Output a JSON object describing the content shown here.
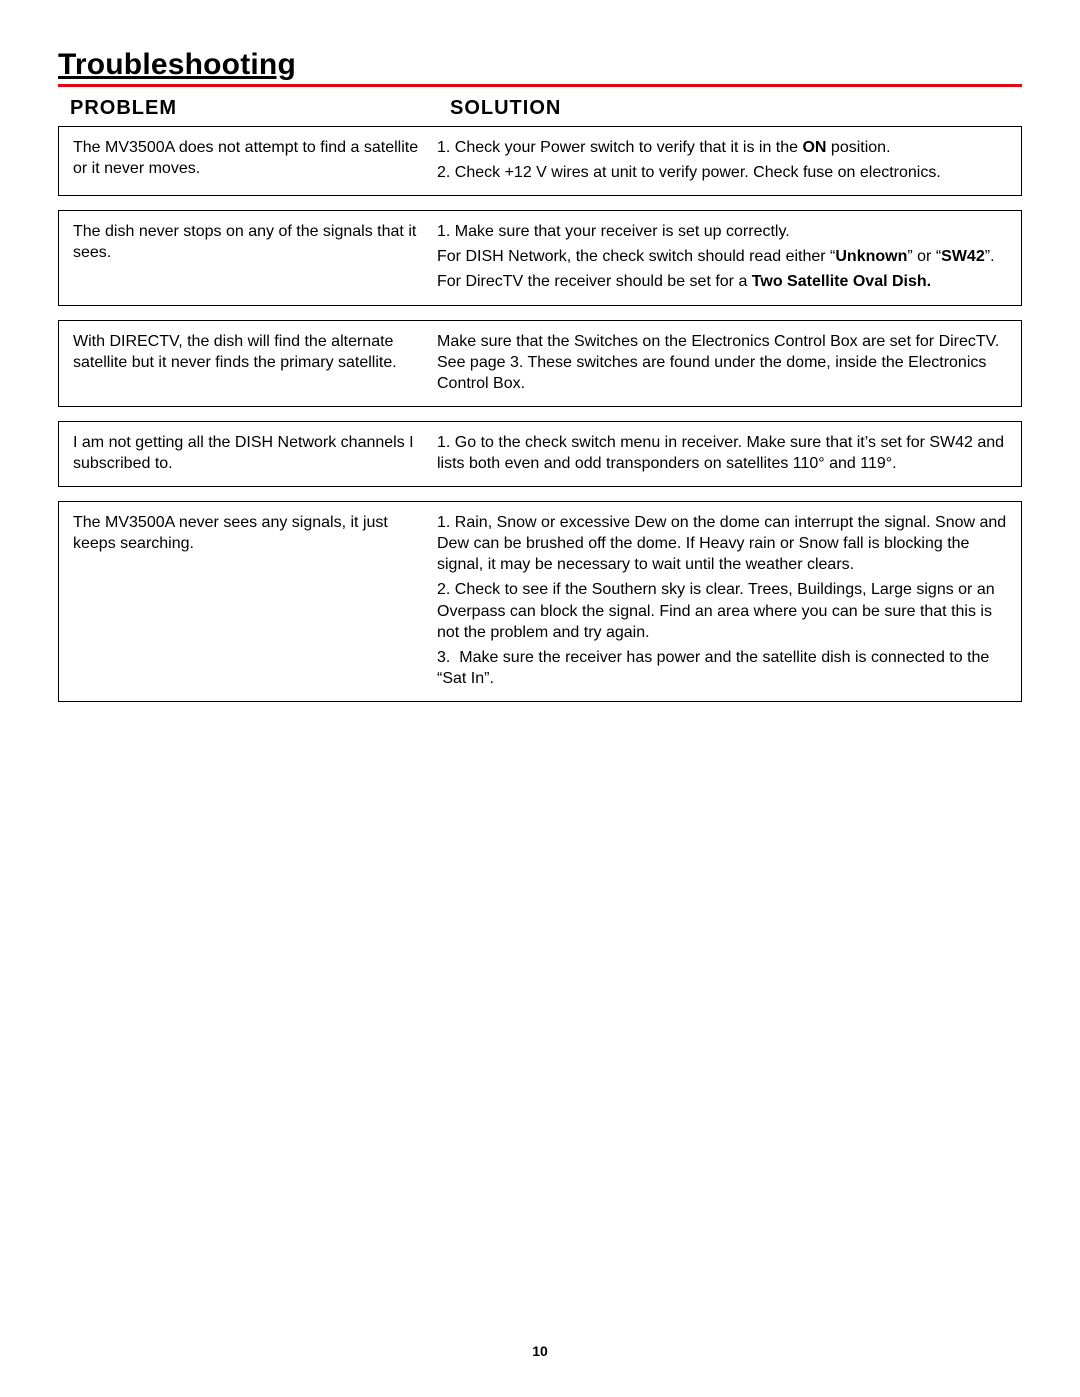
{
  "title": "Troubleshooting",
  "headers": {
    "problem": "PROBLEM",
    "solution": "SOLUTION"
  },
  "rows": [
    {
      "problem": "The MV3500A does not attempt to find a satellite or it never moves.",
      "solution_html": "<p>1. Check your Power switch to verify that it is in the <span class=\"b\">ON</span> position.</p><p>2. Check +12 V wires at unit to verify power. Check fuse on electronics.</p>"
    },
    {
      "problem": "The dish never stops on any of the signals that it sees.",
      "solution_html": "<p>1. Make sure that your receiver is set up correctly.</p><p>For DISH Network, the check switch should read either “<span class=\"b\">Unknown</span>” or “<span class=\"b\">SW42</span>”.</p><p>For DirecTV the receiver should be set for a <span class=\"b\">Two Satellite Oval Dish.</span></p>"
    },
    {
      "problem": "With DIRECTV, the dish will find the alternate satellite but it never finds the primary satellite.",
      "solution_html": "<p>Make sure that the Switches on the Electronics Control Box are set for DirecTV. See page 3. These switches are found under the dome, inside the Electronics Control Box.</p>"
    },
    {
      "problem": "I am not getting all the DISH Network channels I subscribed to.",
      "solution_html": "<p>1. Go to the check switch menu in receiver. Make sure that it’s set for SW42 and lists both even and odd transponders on satellites 110° and 119°.</p>"
    },
    {
      "problem": "The MV3500A never sees any signals, it just keeps searching.",
      "solution_html": "<p>1. Rain, Snow or excessive Dew on the dome can interrupt the signal. Snow and Dew can be brushed off the dome. If Heavy rain or Snow fall is blocking the signal, it may be necessary to wait until the weather clears.</p><p>2. Check to see if the Southern sky is clear. Trees, Buildings, Large signs or an Overpass can block the signal. Find an area where you can be sure that this is not the problem and try again.</p><p>3.&nbsp; Make sure the receiver has power and the satellite dish is connected to the “Sat In”.</p>"
    }
  ],
  "page_number": "10",
  "colors": {
    "accent": "#e30613",
    "text": "#000000",
    "background": "#ffffff"
  }
}
